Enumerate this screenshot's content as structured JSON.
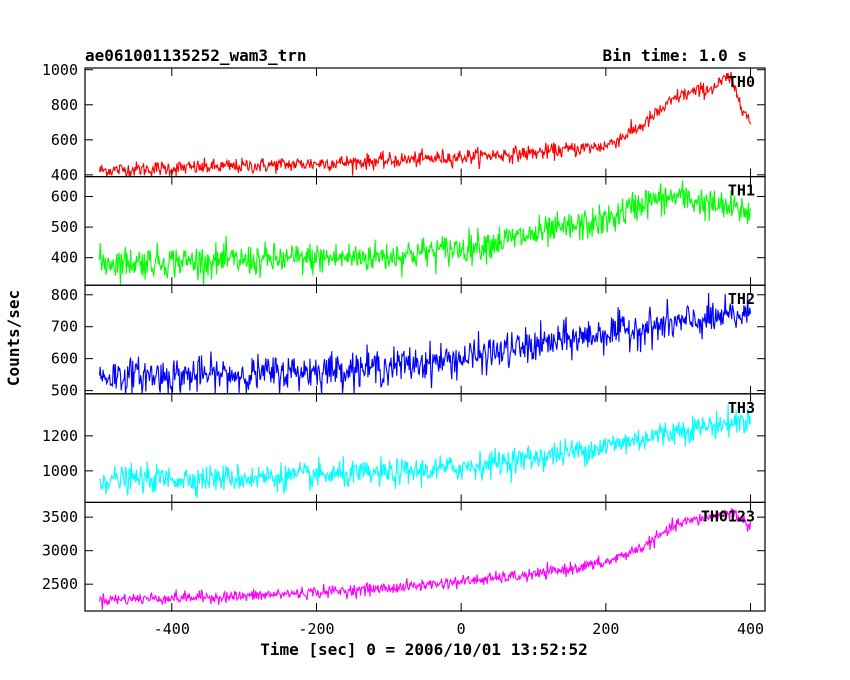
{
  "chart_data": {
    "type": "line",
    "title": "ae061001135252_wam3_trn",
    "subtitle": "Bin time: 1.0 s",
    "xlabel": "Time [sec] 0 = 2006/10/01 13:52:52",
    "ylabel": "Counts/sec",
    "xlim": [
      -520,
      420
    ],
    "x_ticks": [
      -400,
      -200,
      0,
      200,
      400
    ],
    "grid": false,
    "panels": [
      {
        "name": "TH0",
        "color": "#ff0000",
        "ylim": [
          390,
          1010
        ],
        "y_ticks": [
          400,
          600,
          800,
          1000
        ],
        "noise": 22,
        "trend_x": [
          -500,
          -300,
          -100,
          100,
          200,
          250,
          300,
          350,
          370,
          385,
          400
        ],
        "trend_y": [
          425,
          450,
          480,
          525,
          565,
          680,
          850,
          900,
          960,
          830,
          690
        ]
      },
      {
        "name": "TH1",
        "color": "#00ff00",
        "ylim": [
          310,
          665
        ],
        "y_ticks": [
          400,
          500,
          600
        ],
        "noise": 26,
        "trend_x": [
          -500,
          -300,
          -100,
          0,
          100,
          200,
          250,
          300,
          350,
          400
        ],
        "trend_y": [
          385,
          390,
          405,
          430,
          475,
          520,
          580,
          600,
          570,
          550
        ]
      },
      {
        "name": "TH2",
        "color": "#0000ff",
        "ylim": [
          490,
          830
        ],
        "y_ticks": [
          500,
          600,
          700,
          800
        ],
        "noise": 28,
        "trend_x": [
          -500,
          -300,
          -100,
          0,
          100,
          200,
          300,
          400
        ],
        "trend_y": [
          545,
          550,
          575,
          600,
          640,
          680,
          710,
          740
        ]
      },
      {
        "name": "TH3",
        "color": "#00ffff",
        "ylim": [
          820,
          1440
        ],
        "y_ticks": [
          1000,
          1200
        ],
        "noise": 38,
        "trend_x": [
          -500,
          -300,
          -100,
          0,
          100,
          200,
          300,
          400
        ],
        "trend_y": [
          950,
          960,
          985,
          1020,
          1075,
          1140,
          1230,
          1290
        ]
      },
      {
        "name": "TH0123",
        "color": "#ff00ff",
        "ylim": [
          2100,
          3720
        ],
        "y_ticks": [
          2500,
          3000,
          3500
        ],
        "noise": 45,
        "trend_x": [
          -500,
          -300,
          -100,
          100,
          200,
          250,
          300,
          350,
          375,
          400
        ],
        "trend_y": [
          2270,
          2320,
          2440,
          2640,
          2820,
          3050,
          3400,
          3520,
          3580,
          3350
        ]
      }
    ]
  }
}
